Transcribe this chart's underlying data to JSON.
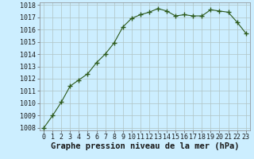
{
  "x": [
    0,
    1,
    2,
    3,
    4,
    5,
    6,
    7,
    8,
    9,
    10,
    11,
    12,
    13,
    14,
    15,
    16,
    17,
    18,
    19,
    20,
    21,
    22,
    23
  ],
  "y": [
    1008.0,
    1009.0,
    1010.1,
    1011.4,
    1011.9,
    1012.4,
    1013.3,
    1014.0,
    1014.9,
    1016.2,
    1016.9,
    1017.2,
    1017.4,
    1017.7,
    1017.5,
    1017.1,
    1017.2,
    1017.1,
    1017.1,
    1017.6,
    1017.5,
    1017.4,
    1016.6,
    1015.7
  ],
  "line_color": "#2d5a1b",
  "marker": "+",
  "marker_size": 4,
  "marker_lw": 1.0,
  "bg_color": "#cceeff",
  "grid_color": "#b0c4c4",
  "xlabel": "Graphe pression niveau de la mer (hPa)",
  "xlabel_fontsize": 7.5,
  "ylim_min": 1008,
  "ylim_max": 1018,
  "xlim_min": -0.5,
  "xlim_max": 23.5,
  "tick_fontsize": 6.0
}
